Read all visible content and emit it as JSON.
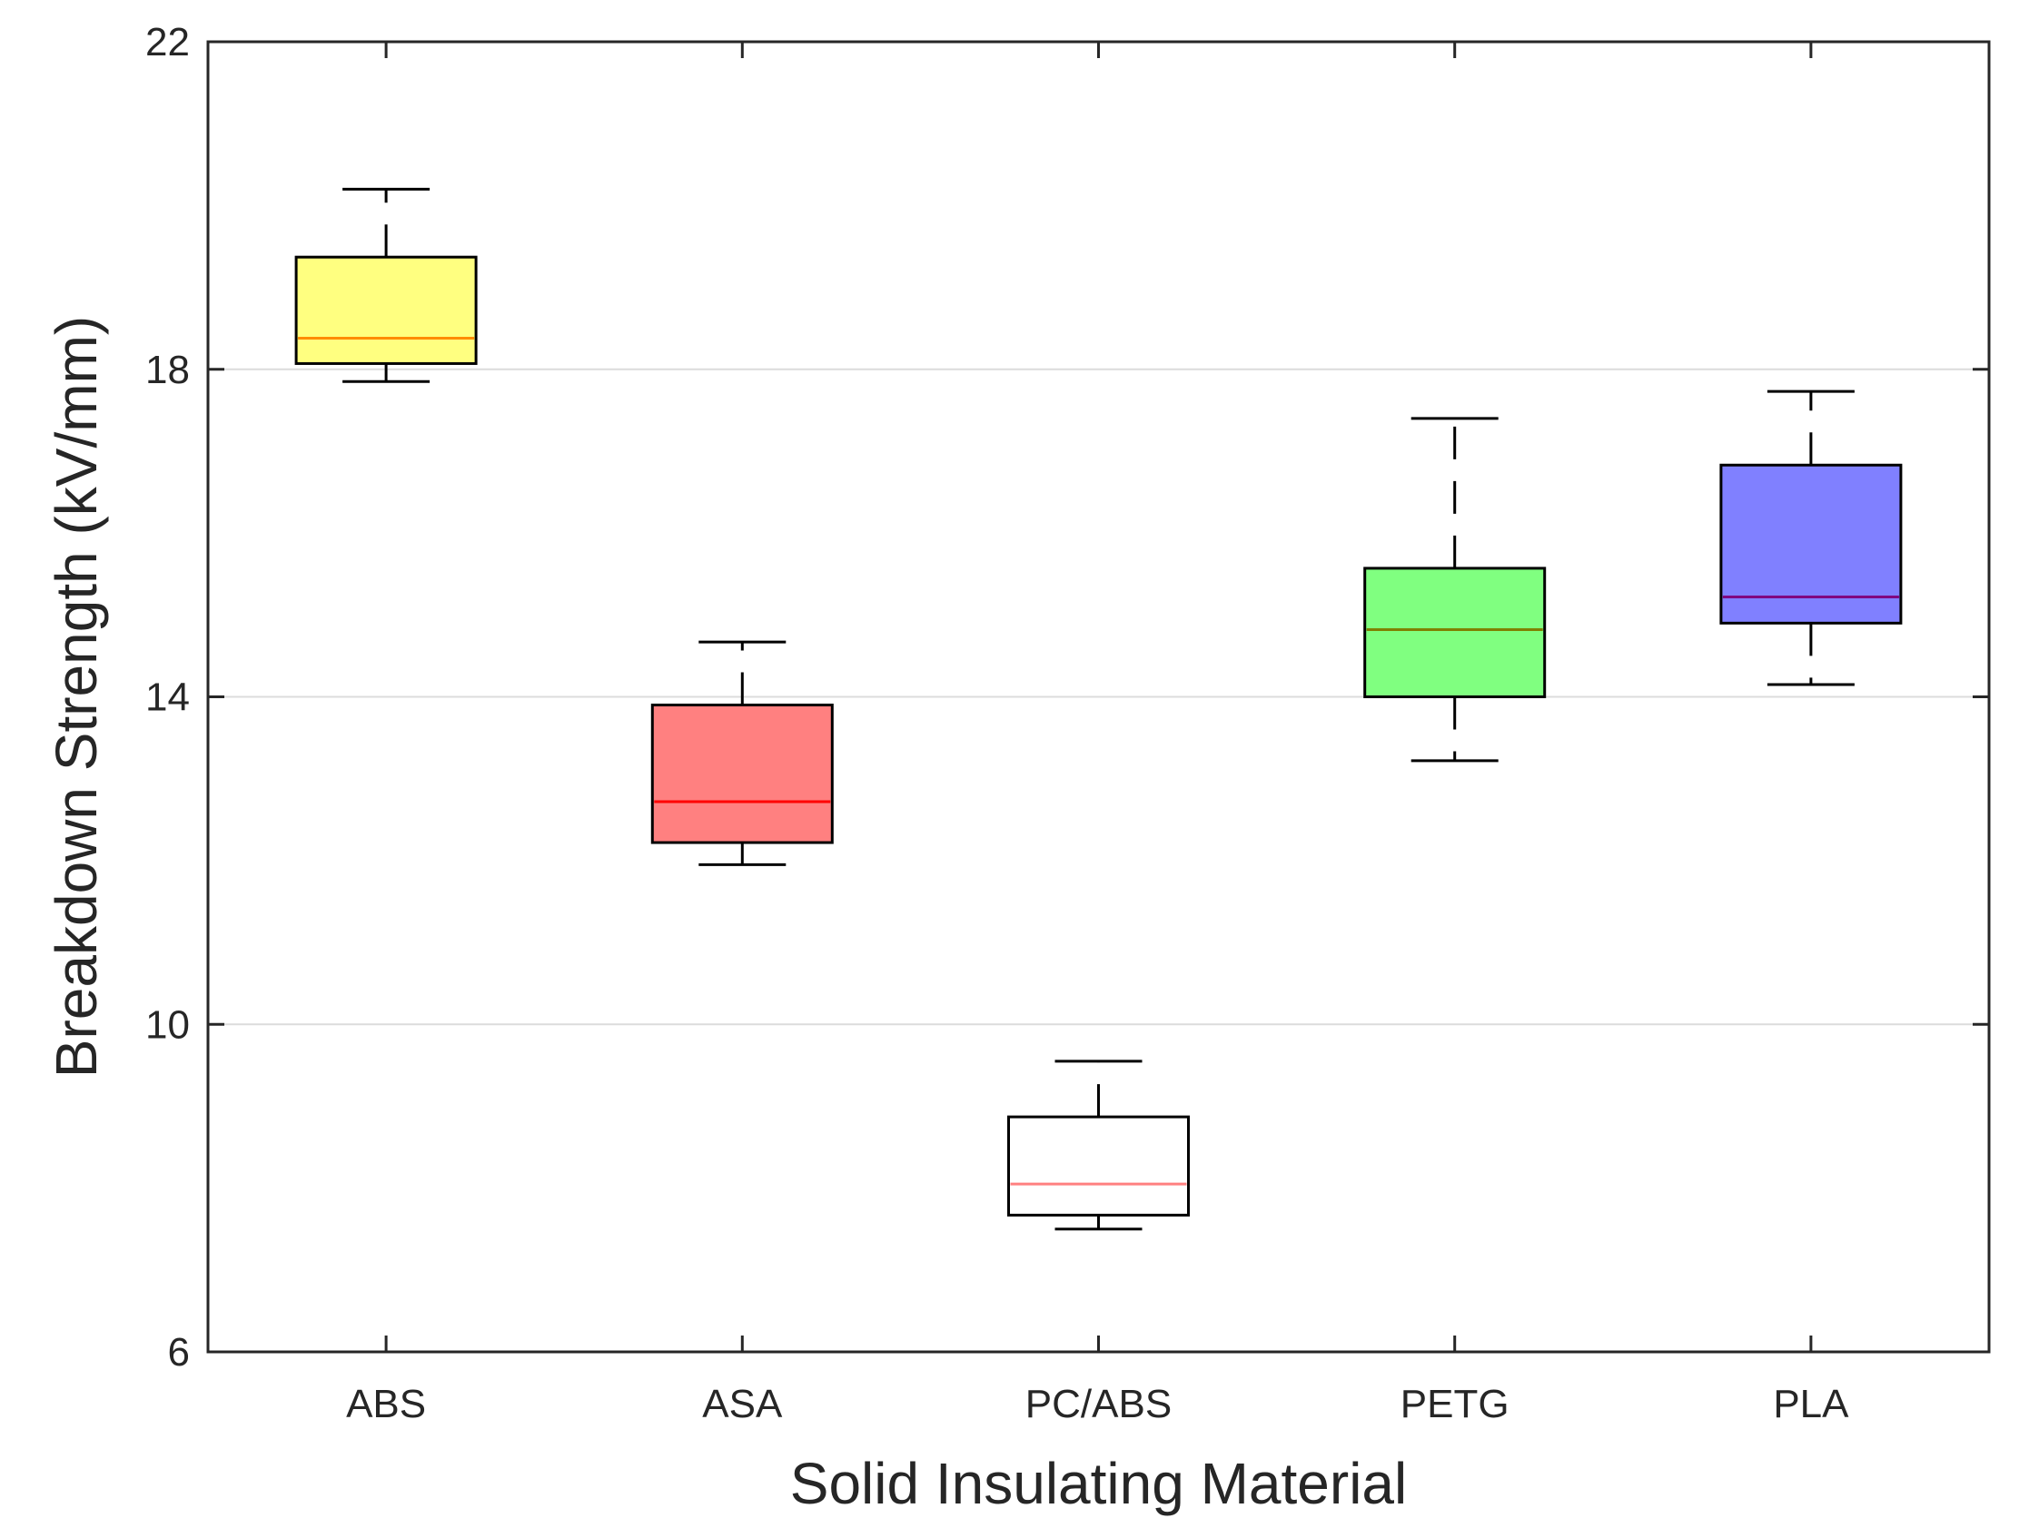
{
  "chart_data": {
    "type": "box",
    "title": "",
    "xlabel": "Solid Insulating Material",
    "ylabel": "Breakdown Strength (kV/mm)",
    "ylim": [
      6,
      22
    ],
    "yticks": [
      6,
      10,
      14,
      18,
      22
    ],
    "grid": "y-major",
    "categories": [
      "ABS",
      "ASA",
      "PC/ABS",
      "PETG",
      "PLA"
    ],
    "boxes": [
      {
        "category": "ABS",
        "min": 17.85,
        "q1": 18.07,
        "median": 18.38,
        "q3": 19.37,
        "max": 20.2,
        "fill": "#ffff80",
        "median_color": "#ff8c00"
      },
      {
        "category": "ASA",
        "min": 11.95,
        "q1": 12.22,
        "median": 12.72,
        "q3": 13.9,
        "max": 14.67,
        "fill": "#ff8080",
        "median_color": "#ff0000"
      },
      {
        "category": "PC/ABS",
        "min": 7.5,
        "q1": 7.67,
        "median": 8.05,
        "q3": 8.87,
        "max": 9.55,
        "fill": "#ffffff",
        "median_color": "#ff8080"
      },
      {
        "category": "PETG",
        "min": 13.22,
        "q1": 14.0,
        "median": 14.82,
        "q3": 15.57,
        "max": 17.4,
        "fill": "#80ff80",
        "median_color": "#808000"
      },
      {
        "category": "PLA",
        "min": 14.15,
        "q1": 14.9,
        "median": 15.22,
        "q3": 16.83,
        "max": 17.73,
        "fill": "#8080ff",
        "median_color": "#800080"
      }
    ]
  }
}
